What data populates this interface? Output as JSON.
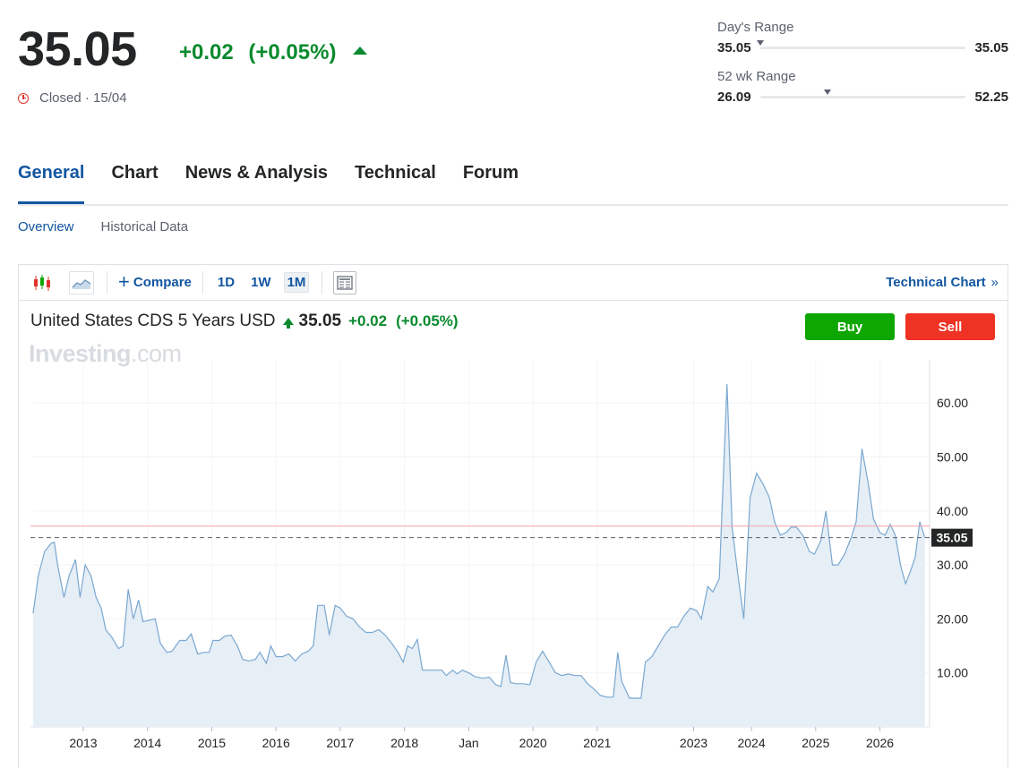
{
  "quote": {
    "price": "35.05",
    "change": "+0.02",
    "change_pct": "(+0.05%)",
    "status": "Closed · 15/04"
  },
  "days_range": {
    "label": "Day's Range",
    "low": "35.05",
    "high": "35.05",
    "position_fraction": 0.0
  },
  "wk52_range": {
    "label": "52 wk Range",
    "low": "26.09",
    "high": "52.25",
    "position_fraction": 0.33
  },
  "tabs": [
    {
      "label": "General",
      "active": true
    },
    {
      "label": "Chart",
      "active": false
    },
    {
      "label": "News & Analysis",
      "active": false
    },
    {
      "label": "Technical",
      "active": false
    },
    {
      "label": "Forum",
      "active": false
    }
  ],
  "subtabs": [
    {
      "label": "Overview",
      "active": true
    },
    {
      "label": "Historical Data",
      "active": false
    }
  ],
  "toolbar": {
    "candles_icon": "candlestick-icon",
    "area_icon": "area-chart-icon",
    "compare_label": "Compare",
    "timeframes": [
      "1D",
      "1W",
      "1M"
    ],
    "selected_timeframe": "1M",
    "layout_icon": "chart-layout-icon",
    "technical_link": "Technical Chart",
    "technical_chevron": "»"
  },
  "chart_header": {
    "title": "United States CDS 5 Years USD",
    "price": "35.05",
    "change": "+0.02",
    "change_pct": "(+0.05%)",
    "buy_label": "Buy",
    "sell_label": "Sell"
  },
  "watermark": {
    "brand": "Investing",
    "suffix": ".com"
  },
  "colors": {
    "positive": "#0a8a2e",
    "accent": "#1256a0",
    "buy": "#0ea600",
    "sell": "#ee3224",
    "line": "#7aa8d0",
    "area": "#e6eef6",
    "ref_line": "#f2a3a3"
  },
  "chart_data": {
    "type": "area",
    "x_labels": [
      "2013",
      "2014",
      "2015",
      "2016",
      "2017",
      "2018",
      "Jan",
      "2020",
      "2021",
      "2023",
      "2024",
      "2025",
      "2026"
    ],
    "x_label_positions": [
      2013.0,
      2014.0,
      2015.0,
      2016.0,
      2017.0,
      2018.0,
      2019.0,
      2020.0,
      2021.0,
      2022.5,
      2023.4,
      2024.4,
      2025.4
    ],
    "x_range": [
      2012.22,
      2025.95
    ],
    "y_ticks": [
      10,
      20,
      30,
      40,
      50,
      60
    ],
    "y_tick_labels": [
      "10.00",
      "20.00",
      "30.00",
      "40.00",
      "50.00",
      "60.00"
    ],
    "y_range": [
      0,
      68
    ],
    "last_value": 35.05,
    "last_value_label": "35.05",
    "reference_line": 37.2,
    "series": [
      {
        "values": [
          [
            2012.22,
            21
          ],
          [
            2012.3,
            28
          ],
          [
            2012.4,
            32.5
          ],
          [
            2012.5,
            34
          ],
          [
            2012.55,
            34.2
          ],
          [
            2012.6,
            30
          ],
          [
            2012.7,
            24
          ],
          [
            2012.78,
            28
          ],
          [
            2012.88,
            31
          ],
          [
            2012.95,
            24
          ],
          [
            2013.03,
            30
          ],
          [
            2013.12,
            28
          ],
          [
            2013.2,
            24
          ],
          [
            2013.28,
            22
          ],
          [
            2013.35,
            18
          ],
          [
            2013.45,
            16.5
          ],
          [
            2013.55,
            14.5
          ],
          [
            2013.62,
            15
          ],
          [
            2013.7,
            25.5
          ],
          [
            2013.78,
            20
          ],
          [
            2013.86,
            23.5
          ],
          [
            2013.93,
            19.5
          ],
          [
            2014.05,
            19.8
          ],
          [
            2014.12,
            20
          ],
          [
            2014.2,
            15.5
          ],
          [
            2014.3,
            13.8
          ],
          [
            2014.38,
            14
          ],
          [
            2014.5,
            16
          ],
          [
            2014.6,
            16
          ],
          [
            2014.68,
            17.2
          ],
          [
            2014.78,
            13.5
          ],
          [
            2014.88,
            13.8
          ],
          [
            2014.96,
            13.8
          ],
          [
            2015.02,
            16
          ],
          [
            2015.12,
            16
          ],
          [
            2015.2,
            16.8
          ],
          [
            2015.3,
            17
          ],
          [
            2015.4,
            15
          ],
          [
            2015.48,
            12.5
          ],
          [
            2015.58,
            12.2
          ],
          [
            2015.68,
            12.5
          ],
          [
            2015.75,
            13.8
          ],
          [
            2015.85,
            11.8
          ],
          [
            2015.92,
            15
          ],
          [
            2016.0,
            13
          ],
          [
            2016.1,
            13
          ],
          [
            2016.2,
            13.5
          ],
          [
            2016.3,
            12.2
          ],
          [
            2016.4,
            13.5
          ],
          [
            2016.5,
            14
          ],
          [
            2016.58,
            15
          ],
          [
            2016.65,
            22.5
          ],
          [
            2016.75,
            22.5
          ],
          [
            2016.83,
            17
          ],
          [
            2016.92,
            22.5
          ],
          [
            2017.0,
            22
          ],
          [
            2017.1,
            20.5
          ],
          [
            2017.2,
            20
          ],
          [
            2017.3,
            18.5
          ],
          [
            2017.4,
            17.5
          ],
          [
            2017.5,
            17.5
          ],
          [
            2017.6,
            18
          ],
          [
            2017.7,
            17
          ],
          [
            2017.8,
            15.5
          ],
          [
            2017.9,
            13.8
          ],
          [
            2017.98,
            12
          ],
          [
            2018.05,
            15
          ],
          [
            2018.12,
            14.5
          ],
          [
            2018.2,
            16.2
          ],
          [
            2018.28,
            10.5
          ],
          [
            2018.4,
            10.5
          ],
          [
            2018.5,
            10.5
          ],
          [
            2018.58,
            10.5
          ],
          [
            2018.65,
            9.5
          ],
          [
            2018.75,
            10.5
          ],
          [
            2018.82,
            9.8
          ],
          [
            2018.9,
            10.5
          ],
          [
            2019.0,
            10
          ],
          [
            2019.1,
            9.3
          ],
          [
            2019.22,
            9
          ],
          [
            2019.32,
            9.2
          ],
          [
            2019.42,
            7.8
          ],
          [
            2019.5,
            7.5
          ],
          [
            2019.58,
            13.3
          ],
          [
            2019.65,
            8.2
          ],
          [
            2019.75,
            8
          ],
          [
            2019.85,
            8
          ],
          [
            2019.95,
            7.8
          ],
          [
            2020.05,
            12
          ],
          [
            2020.15,
            14
          ],
          [
            2020.25,
            12
          ],
          [
            2020.35,
            10
          ],
          [
            2020.45,
            9.5
          ],
          [
            2020.55,
            9.8
          ],
          [
            2020.65,
            9.5
          ],
          [
            2020.75,
            9.5
          ],
          [
            2020.85,
            8
          ],
          [
            2020.95,
            7
          ],
          [
            2021.05,
            5.8
          ],
          [
            2021.15,
            5.5
          ],
          [
            2021.25,
            5.5
          ],
          [
            2021.32,
            13.8
          ],
          [
            2021.38,
            8.5
          ],
          [
            2021.5,
            5.3
          ],
          [
            2021.6,
            5.3
          ],
          [
            2021.68,
            5.3
          ],
          [
            2021.75,
            12
          ],
          [
            2021.85,
            13
          ],
          [
            2021.95,
            15
          ],
          [
            2022.05,
            17
          ],
          [
            2022.15,
            18.5
          ],
          [
            2022.25,
            18.5
          ],
          [
            2022.35,
            20.5
          ],
          [
            2022.45,
            22
          ],
          [
            2022.55,
            21.5
          ],
          [
            2022.62,
            20
          ],
          [
            2022.72,
            26
          ],
          [
            2022.8,
            25
          ],
          [
            2022.9,
            27.5
          ],
          [
            2023.02,
            63.5
          ],
          [
            2023.1,
            37
          ],
          [
            2023.18,
            29
          ],
          [
            2023.28,
            20
          ],
          [
            2023.38,
            42.5
          ],
          [
            2023.48,
            47
          ],
          [
            2023.58,
            45
          ],
          [
            2023.68,
            42.5
          ],
          [
            2023.76,
            38
          ],
          [
            2023.85,
            35.5
          ],
          [
            2023.94,
            36
          ],
          [
            2024.02,
            37
          ],
          [
            2024.1,
            37
          ],
          [
            2024.2,
            35.5
          ],
          [
            2024.3,
            32.5
          ],
          [
            2024.38,
            32
          ],
          [
            2024.48,
            34.5
          ],
          [
            2024.56,
            40
          ],
          [
            2024.66,
            30
          ],
          [
            2024.75,
            30
          ],
          [
            2024.85,
            32
          ],
          [
            2024.95,
            35
          ],
          [
            2025.03,
            38
          ],
          [
            2025.12,
            51.5
          ],
          [
            2025.22,
            45
          ],
          [
            2025.3,
            38.5
          ],
          [
            2025.4,
            36
          ],
          [
            2025.48,
            35.5
          ],
          [
            2025.56,
            37.5
          ],
          [
            2025.64,
            35.5
          ],
          [
            2025.72,
            30
          ],
          [
            2025.8,
            26.5
          ],
          [
            2025.88,
            29
          ],
          [
            2025.95,
            31.5
          ],
          [
            2026.02,
            38
          ],
          [
            2026.1,
            35.05
          ]
        ]
      }
    ]
  }
}
